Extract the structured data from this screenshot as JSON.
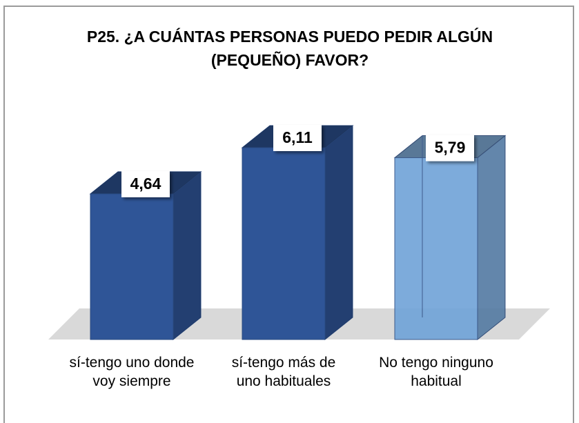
{
  "chart_data": {
    "type": "bar3d",
    "title": "P25. ¿A CUÁNTAS PERSONAS PUEDO PEDIR ALGÚN (PEQUEÑO) FAVOR?",
    "categories": [
      "sí-tengo uno donde voy siempre",
      "sí-tengo más de uno habituales",
      "No tengo ninguno habitual"
    ],
    "values": [
      4.64,
      6.11,
      5.79
    ],
    "value_labels": [
      "4,64",
      "6,11",
      "5,79"
    ],
    "colors": [
      "#2f5597",
      "#2f5597",
      "#6fa3d8"
    ],
    "ylim": [
      0,
      7
    ]
  }
}
